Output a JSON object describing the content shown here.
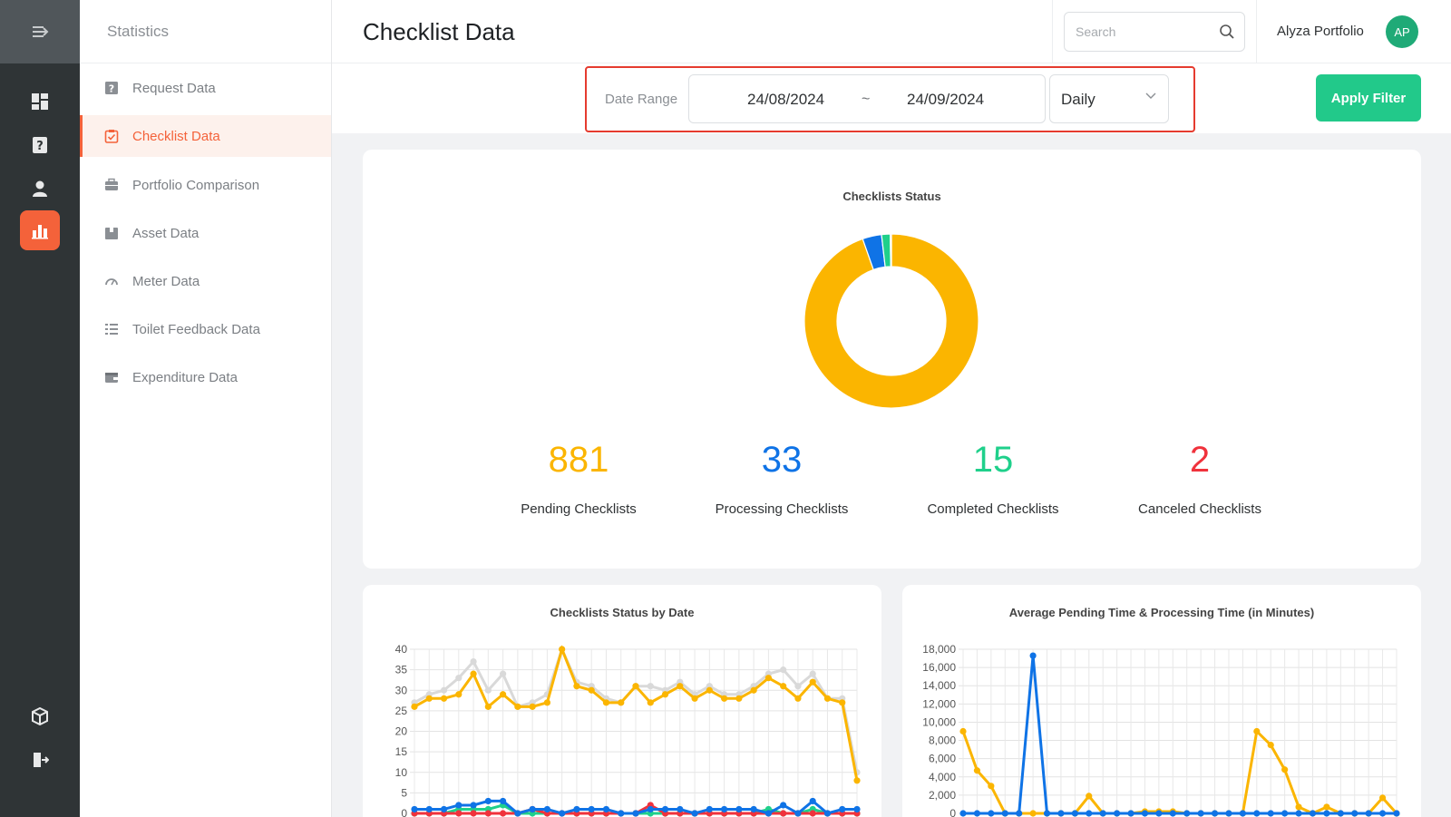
{
  "sidebar": {
    "title": "Statistics",
    "items": [
      {
        "label": "Request Data"
      },
      {
        "label": "Checklist Data"
      },
      {
        "label": "Portfolio Comparison"
      },
      {
        "label": "Asset Data"
      },
      {
        "label": "Meter Data"
      },
      {
        "label": "Toilet Feedback Data"
      },
      {
        "label": "Expenditure Data"
      }
    ]
  },
  "header": {
    "title": "Checklist Data",
    "search_placeholder": "Search",
    "user_name": "Alyza Portfolio",
    "user_initials": "AP"
  },
  "filter": {
    "label": "Date Range",
    "date_from": "24/08/2024",
    "separator": "~",
    "date_to": "24/09/2024",
    "granularity": "Daily",
    "apply_label": "Apply Filter"
  },
  "colors": {
    "accent": "#f4623a",
    "pending": "#fbb500",
    "processing": "#0f73e6",
    "completed": "#1fd08b",
    "canceled": "#f0323c",
    "total": "#d9d9d9",
    "apply": "#22c98a"
  },
  "stats": [
    {
      "value": "881",
      "label": "Pending Checklists",
      "color": "#fbb500"
    },
    {
      "value": "33",
      "label": "Processing Checklists",
      "color": "#0f73e6"
    },
    {
      "value": "15",
      "label": "Completed Checklists",
      "color": "#1fd08b"
    },
    {
      "value": "2",
      "label": "Canceled Checklists",
      "color": "#f0323c"
    }
  ],
  "chart_data": [
    {
      "type": "pie",
      "title": "Checklists Status",
      "donut": true,
      "labels": [
        "Pending Checklists",
        "Processing Checklists",
        "Completed Checklists",
        "Canceled Checklists"
      ],
      "values": [
        881,
        33,
        15,
        2
      ],
      "colors": [
        "#fbb500",
        "#0f73e6",
        "#1fd08b",
        "#f0323c"
      ]
    },
    {
      "type": "line",
      "title": "Checklists Status by Date",
      "ylim": [
        0,
        40
      ],
      "yticks": [
        0,
        5,
        10,
        15,
        20,
        25,
        30,
        35,
        40
      ],
      "series": [
        {
          "color": "#d9d9d9",
          "values": [
            27,
            29,
            30,
            33,
            37,
            30,
            34,
            26,
            27,
            29,
            40,
            32,
            31,
            28,
            27,
            31,
            31,
            30,
            32,
            29,
            31,
            29,
            29,
            31,
            34,
            35,
            31,
            34,
            28,
            28,
            10
          ]
        },
        {
          "color": "#fbb500",
          "values": [
            26,
            28,
            28,
            29,
            34,
            26,
            29,
            26,
            26,
            27,
            40,
            31,
            30,
            27,
            27,
            31,
            27,
            29,
            31,
            28,
            30,
            28,
            28,
            30,
            33,
            31,
            28,
            32,
            28,
            27,
            8
          ]
        },
        {
          "color": "#1fd08b",
          "values": [
            0,
            0,
            0,
            1,
            1,
            1,
            2,
            0,
            0,
            0,
            0,
            0,
            0,
            0,
            0,
            0,
            0,
            0,
            0,
            0,
            0,
            0,
            0,
            0,
            1,
            0,
            0,
            1,
            0,
            0,
            0
          ]
        },
        {
          "color": "#f0323c",
          "values": [
            0,
            0,
            0,
            0,
            0,
            0,
            0,
            0,
            1,
            0,
            0,
            0,
            0,
            0,
            0,
            0,
            2,
            0,
            0,
            0,
            0,
            0,
            0,
            0,
            0,
            0,
            0,
            0,
            0,
            0,
            0
          ]
        },
        {
          "color": "#0f73e6",
          "values": [
            1,
            1,
            1,
            2,
            2,
            3,
            3,
            0,
            1,
            1,
            0,
            1,
            1,
            1,
            0,
            0,
            1,
            1,
            1,
            0,
            1,
            1,
            1,
            1,
            0,
            2,
            0,
            3,
            0,
            1,
            1
          ]
        }
      ]
    },
    {
      "type": "line",
      "title": "Average Pending Time & Processing Time (in Minutes)",
      "ylim": [
        0,
        18000
      ],
      "yticks": [
        "0",
        "2,000",
        "4,000",
        "6,000",
        "8,000",
        "10,000",
        "12,000",
        "14,000",
        "16,000",
        "18,000"
      ],
      "series": [
        {
          "color": "#fbb500",
          "values": [
            9000,
            4700,
            3000,
            0,
            0,
            0,
            0,
            0,
            0,
            1900,
            0,
            0,
            0,
            200,
            200,
            200,
            0,
            0,
            0,
            0,
            0,
            9000,
            7500,
            4800,
            700,
            0,
            700,
            0,
            0,
            0,
            1700,
            0
          ]
        },
        {
          "color": "#0f73e6",
          "values": [
            0,
            0,
            0,
            0,
            0,
            17300,
            0,
            0,
            0,
            0,
            0,
            0,
            0,
            0,
            0,
            0,
            0,
            0,
            0,
            0,
            0,
            0,
            0,
            0,
            0,
            0,
            0,
            0,
            0,
            0,
            0,
            0
          ]
        }
      ]
    }
  ]
}
